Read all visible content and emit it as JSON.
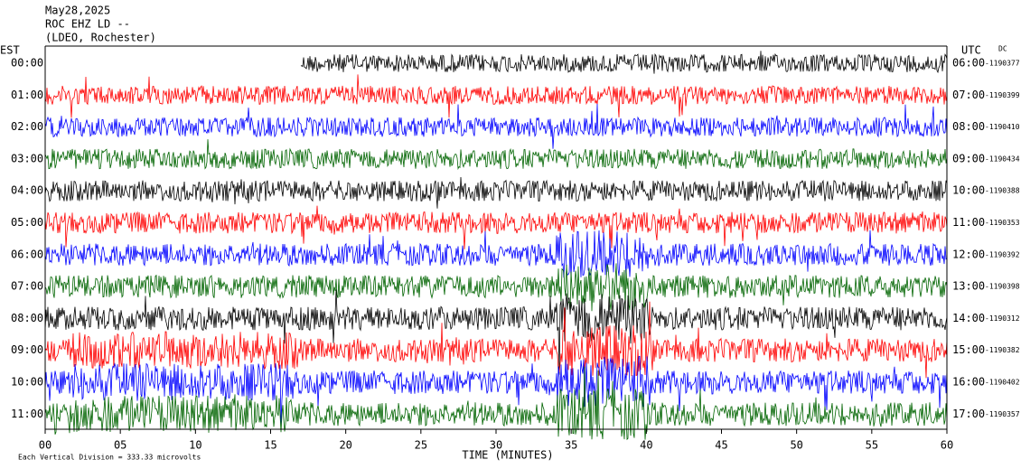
{
  "header": {
    "lines": [
      "May28,2025",
      "ROC EHZ LD --",
      "(LDEO, Rochester)"
    ]
  },
  "axes": {
    "left_title": "EST",
    "right_title": "UTC",
    "dc_title": "DC"
  },
  "rows": [
    {
      "est": "00:00",
      "utc": "06:00",
      "dc": "-1190377"
    },
    {
      "est": "01:00",
      "utc": "07:00",
      "dc": "-1190399"
    },
    {
      "est": "02:00",
      "utc": "08:00",
      "dc": "-1190410"
    },
    {
      "est": "03:00",
      "utc": "09:00",
      "dc": "-1190434"
    },
    {
      "est": "04:00",
      "utc": "10:00",
      "dc": "-1190388"
    },
    {
      "est": "05:00",
      "utc": "11:00",
      "dc": "-1190353"
    },
    {
      "est": "06:00",
      "utc": "12:00",
      "dc": "-1190392"
    },
    {
      "est": "07:00",
      "utc": "13:00",
      "dc": "-1190398"
    },
    {
      "est": "08:00",
      "utc": "14:00",
      "dc": "-1190312"
    },
    {
      "est": "09:00",
      "utc": "15:00",
      "dc": "-1190382"
    },
    {
      "est": "10:00",
      "utc": "16:00",
      "dc": "-1190402"
    },
    {
      "est": "11:00",
      "utc": "17:00",
      "dc": "-1190357"
    }
  ],
  "x_axis": {
    "ticks": [
      "00",
      "05",
      "10",
      "15",
      "20",
      "25",
      "30",
      "35",
      "40",
      "45",
      "50",
      "55",
      "60"
    ],
    "title": "TIME (MINUTES)"
  },
  "footer": "Each Vertical Division = 333.33 microvolts"
}
